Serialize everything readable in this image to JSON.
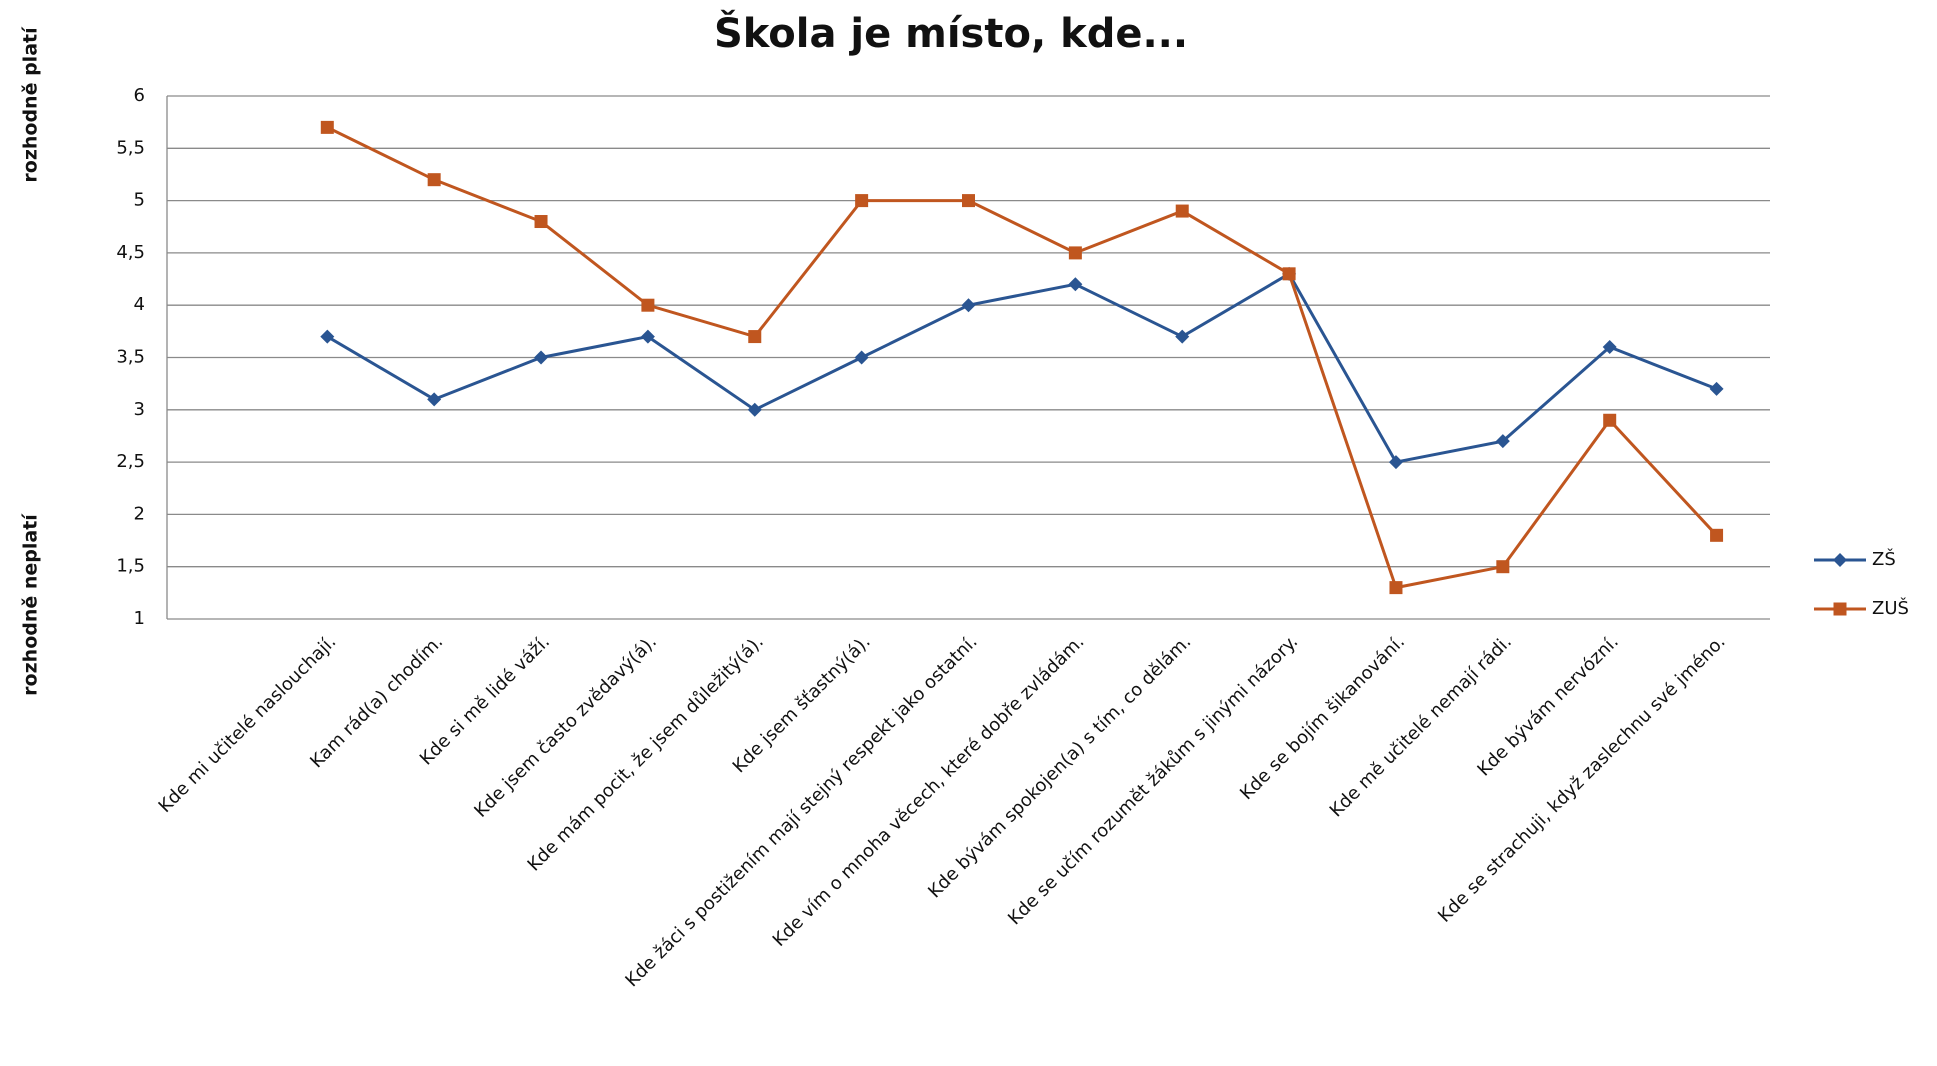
{
  "chart_data": {
    "type": "line",
    "title": "Škola je místo, kde...",
    "y_label_top": "rozhodně platí",
    "y_label_bottom": "rozhodně neplatí",
    "categories": [
      "Kde mi učitelé naslouchají.",
      "Kam rád(a) chodím.",
      "Kde si mě lidé váží.",
      "Kde jsem často zvědavý(á).",
      "Kde mám pocit, že jsem důležitý(á).",
      "Kde jsem šťastný(á).",
      "Kde žáci s postižením mají stejný respekt jako ostatní.",
      "Kde vím o mnoha věcech, které dobře zvládám.",
      "Kde bývám spokojen(a) s tím, co dělám.",
      "Kde se učím rozumět žákům s jinými názory.",
      "Kde se bojím šikanování.",
      "Kde mě učitelé nemají rádi.",
      "Kde bývám nervózní.",
      "Kde se strachuji, když zaslechnu své jméno."
    ],
    "series": [
      {
        "name": "ZŠ",
        "color": "#2a5592",
        "marker": "diamond",
        "values": [
          3.7,
          3.1,
          3.5,
          3.7,
          3.0,
          3.5,
          4.0,
          4.2,
          3.7,
          4.3,
          2.5,
          2.7,
          3.6,
          3.2
        ]
      },
      {
        "name": "ZUŠ",
        "color": "#c0561f",
        "marker": "square",
        "values": [
          5.7,
          5.2,
          4.8,
          4.0,
          3.7,
          5.0,
          5.0,
          4.5,
          4.9,
          4.3,
          1.3,
          1.5,
          2.9,
          1.8
        ]
      }
    ],
    "ylim": [
      1,
      6
    ],
    "yticks": [
      1,
      {
        "value": 1.5,
        "label": "1,5"
      },
      2,
      {
        "value": 2.5,
        "label": "2,5"
      },
      3,
      {
        "value": 3.5,
        "label": "3,5"
      },
      4,
      {
        "value": 4.5,
        "label": "4,5"
      },
      5,
      {
        "value": 5.5,
        "label": "5,5"
      },
      6
    ],
    "grid": true,
    "legend": "right"
  }
}
